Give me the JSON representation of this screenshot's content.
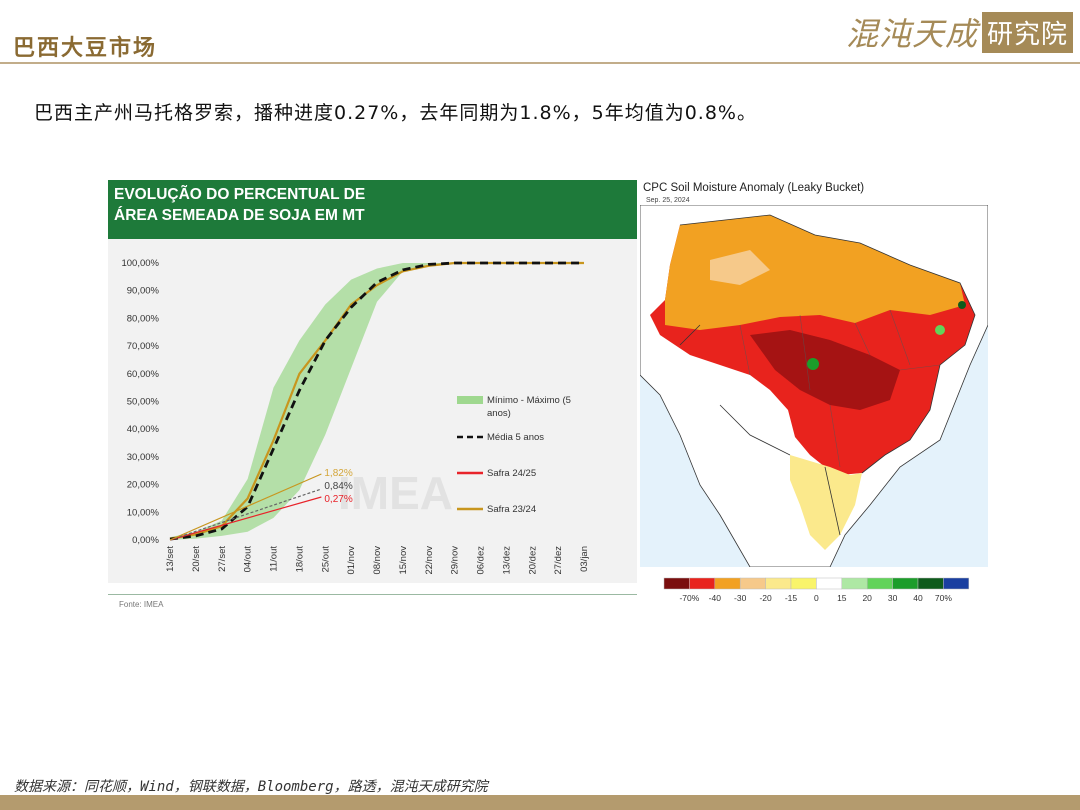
{
  "header": {
    "title": "巴西大豆市场",
    "brand_script": "混沌天成",
    "brand_box": "研究院"
  },
  "subtitle": "巴西主产州马托格罗索，播种进度0.27%，去年同期为1.8%，5年均值为0.8%。",
  "chart_data": {
    "type": "line",
    "title": "EVOLUÇÃO DO PERCENTUAL DE ÁREA SEMEADA DE SOJA EM MT",
    "title_lines": [
      "EVOLUÇÃO DO PERCENTUAL DE",
      "ÁREA SEMEADA DE SOJA EM MT"
    ],
    "source": "Fonte: IMEA",
    "watermark": "IMEA",
    "ylim": [
      0,
      100
    ],
    "y_ticks": [
      "0,00%",
      "10,00%",
      "20,00%",
      "30,00%",
      "40,00%",
      "50,00%",
      "60,00%",
      "70,00%",
      "80,00%",
      "90,00%",
      "100,00%"
    ],
    "categories": [
      "13/set",
      "20/set",
      "27/set",
      "04/out",
      "11/out",
      "18/out",
      "25/out",
      "01/nov",
      "08/nov",
      "15/nov",
      "22/nov",
      "29/nov",
      "06/dez",
      "13/dez",
      "20/dez",
      "27/dez",
      "03/jan"
    ],
    "legend_labels": {
      "band": "Mínimo - Máximo (5 anos)",
      "band_l1": "Mínimo - Máximo (5",
      "band_l2": "anos)",
      "media": "Média 5 anos",
      "s2425": "Safra 24/25",
      "s2324": "Safra 23/24"
    },
    "band": {
      "name": "Mínimo - Máximo (5 anos)",
      "min": [
        0,
        0.5,
        1.5,
        3,
        8,
        18,
        38,
        62,
        86,
        97,
        99.5,
        100,
        100,
        100,
        100,
        100,
        100
      ],
      "max": [
        1,
        3,
        7,
        22,
        55,
        72,
        85,
        94,
        98,
        100,
        100,
        100,
        100,
        100,
        100,
        100,
        100
      ]
    },
    "series": [
      {
        "name": "Média 5 anos",
        "values": [
          0.3,
          1.5,
          4,
          12,
          33,
          54,
          72,
          84,
          93,
          97.5,
          99.5,
          100,
          100,
          100,
          100,
          100,
          100
        ]
      },
      {
        "name": "Safra 23/24",
        "values": [
          0.5,
          2,
          5,
          15,
          36,
          60,
          72,
          85,
          92,
          97,
          99,
          100,
          100,
          100,
          100,
          100,
          100
        ]
      }
    ],
    "inset_lines": [
      {
        "name": "Safra 24/25",
        "label": "0,27%",
        "value": 0.27
      },
      {
        "name": "Média 5 anos",
        "label": "0,84%",
        "value": 0.84
      },
      {
        "name": "Safra 23/24",
        "label": "1,82%",
        "value": 1.82
      }
    ],
    "colors": {
      "band": "#9fd88f",
      "media": "#111111",
      "s2425": "#e8232a",
      "s2324": "#c8961e",
      "label_2425": "#e8232a",
      "label_media": "#444444",
      "label_2324": "#d4a63a"
    }
  },
  "map": {
    "title": "CPC Soil Moisture Anomaly (Leaky Bucket)",
    "date": "Sep. 25, 2024",
    "legend_colors": [
      "#7a0e0e",
      "#e8231d",
      "#f2a122",
      "#f6c98a",
      "#fbe98c",
      "#f9f46a",
      "#ffffff",
      "#aee8a4",
      "#62d35a",
      "#1c9d2a",
      "#0e5b1c",
      "#1a3fa0"
    ],
    "legend_labels": [
      "-70%",
      "-40",
      "-30",
      "-20",
      "-15",
      "0",
      "15",
      "20",
      "30",
      "40",
      "70%"
    ]
  },
  "footer": {
    "source": "数据来源：同花顺，Wind，钢联数据，Bloomberg，路透，混沌天成研究院"
  }
}
